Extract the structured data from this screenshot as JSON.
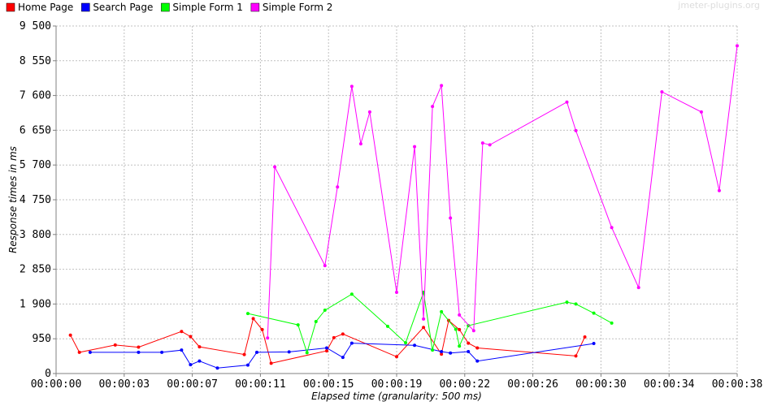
{
  "watermark": "jmeter-plugins.org",
  "chart_data": {
    "type": "line",
    "xlabel": "Elapsed time (granularity: 500 ms)",
    "ylabel": "Response times in ms",
    "xlim": [
      0,
      38
    ],
    "ylim": [
      0,
      9500
    ],
    "x_ticks": [
      0,
      3.8,
      7.6,
      11.4,
      15.2,
      19,
      22.8,
      26.6,
      30.4,
      34.2,
      38
    ],
    "x_tick_labels": [
      "00:00:00",
      "00:00:03",
      "00:00:07",
      "00:00:11",
      "00:00:15",
      "00:00:19",
      "00:00:22",
      "00:00:26",
      "00:00:30",
      "00:00:34",
      "00:00:38"
    ],
    "y_ticks": [
      0,
      950,
      1900,
      2850,
      3800,
      4750,
      5700,
      6650,
      7600,
      8550,
      9500
    ],
    "y_tick_labels": [
      "0",
      "950",
      "1 900",
      "2 850",
      "3 800",
      "4 750",
      "5 700",
      "6 650",
      "7 600",
      "8 550",
      "9 500"
    ],
    "grid": true,
    "legend_position": "top-left",
    "series": [
      {
        "name": "Home Page",
        "color": "#ff0000",
        "x": [
          0.8,
          1.3,
          3.3,
          4.6,
          7.0,
          7.5,
          8.0,
          10.5,
          11.0,
          11.5,
          12.0,
          15.1,
          15.5,
          16.0,
          19.0,
          20.5,
          21.5,
          21.9,
          22.5,
          23.0,
          23.5,
          29.0,
          29.5
        ],
        "y": [
          1050,
          580,
          780,
          720,
          1150,
          1010,
          730,
          520,
          1500,
          1200,
          280,
          620,
          980,
          1080,
          460,
          1260,
          530,
          1450,
          1200,
          830,
          700,
          480,
          1000
        ]
      },
      {
        "name": "Search Page",
        "color": "#0000ff",
        "x": [
          1.9,
          4.6,
          5.9,
          7.0,
          7.5,
          8.0,
          9.0,
          10.7,
          11.2,
          13.0,
          15.1,
          16.0,
          16.5,
          20.0,
          21.5,
          22.0,
          23.0,
          23.5,
          30.0
        ],
        "y": [
          580,
          580,
          580,
          640,
          240,
          340,
          150,
          230,
          580,
          590,
          700,
          440,
          830,
          770,
          600,
          560,
          600,
          340,
          820
        ]
      },
      {
        "name": "Simple Form 1",
        "color": "#00ff00",
        "x": [
          10.7,
          13.5,
          14.0,
          14.5,
          15.0,
          16.5,
          18.5,
          19.5,
          20.5,
          21.0,
          21.5,
          22.3,
          22.5,
          23.0,
          28.5,
          29.0,
          30.0,
          31.0
        ],
        "y": [
          1640,
          1330,
          570,
          1420,
          1730,
          2170,
          1290,
          840,
          2220,
          640,
          1690,
          1210,
          750,
          1310,
          1950,
          1900,
          1650,
          1380
        ]
      },
      {
        "name": "Simple Form 2",
        "color": "#ff00ff",
        "x": [
          11.8,
          12.2,
          15.0,
          15.7,
          16.5,
          17.0,
          17.5,
          19.0,
          20.0,
          20.5,
          21.0,
          21.5,
          22.0,
          22.5,
          23.3,
          23.8,
          24.2,
          28.5,
          29.0,
          31.0,
          32.5,
          33.8,
          36.0,
          37.0,
          38.0
        ],
        "y": [
          970,
          5650,
          2950,
          5100,
          7850,
          6280,
          7150,
          2220,
          6200,
          1490,
          7300,
          7870,
          4250,
          1600,
          1170,
          6300,
          6250,
          7420,
          6640,
          3990,
          2350,
          7700,
          7150,
          5000,
          8960
        ]
      }
    ]
  }
}
